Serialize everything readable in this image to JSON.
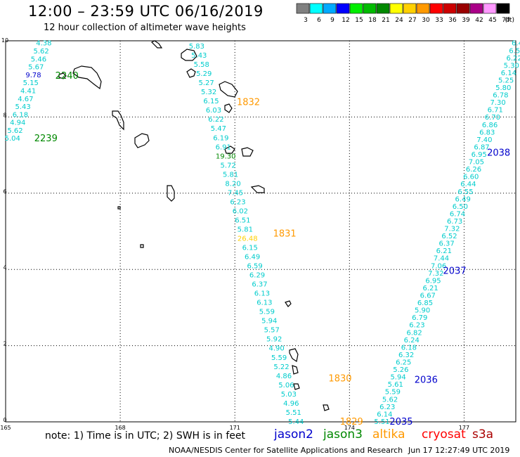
{
  "header": {
    "title": "12:00 – 23:59 UTC 06/16/2019",
    "subtitle": "12 hour collection of altimeter wave heights"
  },
  "legend": {
    "unit": "(ft)",
    "bins": [
      {
        "label": "3",
        "color": "#808080"
      },
      {
        "label": "6",
        "color": "#00ffff"
      },
      {
        "label": "9",
        "color": "#00aaff"
      },
      {
        "label": "12",
        "color": "#0000ff"
      },
      {
        "label": "15",
        "color": "#00ee00"
      },
      {
        "label": "18",
        "color": "#00bb00"
      },
      {
        "label": "21",
        "color": "#008800"
      },
      {
        "label": "24",
        "color": "#ffff00"
      },
      {
        "label": "27",
        "color": "#ffd000"
      },
      {
        "label": "30",
        "color": "#ff9900"
      },
      {
        "label": "33",
        "color": "#ff0000"
      },
      {
        "label": "36",
        "color": "#cc0000"
      },
      {
        "label": "39",
        "color": "#990000"
      },
      {
        "label": "42",
        "color": "#aa0088"
      },
      {
        "label": "45",
        "color": "#ff99ff"
      },
      {
        "label": "70",
        "color": "#000000"
      }
    ]
  },
  "map": {
    "lon_ticks": [
      "165",
      "168",
      "171",
      "174",
      "177"
    ],
    "lat_ticks": [
      "0",
      "2",
      "4",
      "6",
      "8",
      "10"
    ],
    "lon_range": [
      165,
      178.5
    ],
    "lat_range": [
      0,
      10
    ]
  },
  "tracks": [
    {
      "name": "track-west",
      "start": [
        166.0,
        9.95
      ],
      "end": [
        165.18,
        7.45
      ],
      "values": [
        "4.38",
        "5.62",
        "5.46",
        "5.67",
        "9.78",
        "5.15",
        "4.41",
        "4.67",
        "5.43",
        "6.18",
        "4.94",
        "5.62",
        "5.04"
      ],
      "colors": {
        "9.78": "#0000cc"
      },
      "time_labels": [
        {
          "text": "2240",
          "lon": 166.3,
          "lat": 9.1,
          "color": "#008800"
        },
        {
          "text": "2239",
          "lon": 165.75,
          "lat": 7.45,
          "color": "#008800"
        }
      ]
    },
    {
      "name": "track-center",
      "start": [
        170.0,
        9.87
      ],
      "end": [
        172.6,
        0.02
      ],
      "values": [
        "5.83",
        "5.43",
        "5.58",
        "5.29",
        "5.27",
        "5.32",
        "6.15",
        "6.03",
        "6.22",
        "5.47",
        "6.19",
        "6.91",
        "19.30",
        "5.72",
        "5.81",
        "8.20",
        "7.45",
        "6.23",
        "6.02",
        "6.51",
        "5.81",
        "26.48",
        "6.15",
        "6.49",
        "6.59",
        "6.29",
        "6.37",
        "6.13",
        "6.13",
        "5.59",
        "5.94",
        "5.57",
        "5.92",
        "4.90",
        "5.59",
        "5.22",
        "4.86",
        "5.06",
        "5.03",
        "4.96",
        "5.51",
        "5.44"
      ],
      "colors": {
        "19.30": "#008800",
        "26.48": "#ffd000"
      },
      "time_labels": [
        {
          "text": "1832",
          "lon": 171.05,
          "lat": 8.4,
          "color": "#ff9900"
        },
        {
          "text": "1831",
          "lon": 172.0,
          "lat": 4.95,
          "color": "#ff9900"
        },
        {
          "text": "1830",
          "lon": 173.45,
          "lat": 1.15,
          "color": "#ff9900"
        },
        {
          "text": "1829",
          "lon": 173.75,
          "lat": 0.02,
          "color": "#ff9900"
        }
      ]
    },
    {
      "name": "track-east",
      "start": [
        178.45,
        9.95
      ],
      "end": [
        174.85,
        0.02
      ],
      "values": [
        "6.44",
        "6.51",
        "6.22",
        "5.30",
        "6.14",
        "5.25",
        "5.80",
        "6.78",
        "7.30",
        "6.71",
        "6.70",
        "6.86",
        "6.83",
        "7.40",
        "6.87",
        "6.95",
        "7.05",
        "6.26",
        "6.60",
        "6.44",
        "6.55",
        "6.49",
        "6.50",
        "6.74",
        "6.73",
        "7.32",
        "6.52",
        "6.37",
        "6.21",
        "7.44",
        "7.06",
        "7.32",
        "6.95",
        "6.21",
        "6.67",
        "6.85",
        "5.90",
        "6.79",
        "6.23",
        "6.82",
        "6.24",
        "6.18",
        "6.32",
        "6.25",
        "5.26",
        "5.94",
        "5.61",
        "5.59",
        "5.62",
        "6.23",
        "6.14",
        "5.51"
      ],
      "colors": {},
      "time_labels": [
        {
          "text": "2038",
          "lon": 177.6,
          "lat": 7.08,
          "color": "#0000cc"
        },
        {
          "text": "2037",
          "lon": 176.45,
          "lat": 3.98,
          "color": "#0000cc"
        },
        {
          "text": "2036",
          "lon": 175.7,
          "lat": 1.12,
          "color": "#0000cc"
        },
        {
          "text": "2035",
          "lon": 175.05,
          "lat": 0.02,
          "color": "#0000cc"
        }
      ]
    }
  ],
  "footer": {
    "note": "note:  1) Time is in UTC;  2) SWH is in feet",
    "satellites": [
      {
        "name": "jason2",
        "color": "#0000cc"
      },
      {
        "name": "jason3",
        "color": "#008800"
      },
      {
        "name": "altika",
        "color": "#ff9900"
      },
      {
        "name": "cryosat",
        "color": "#ff0000"
      },
      {
        "name": "s3a",
        "color": "#aa0000"
      }
    ],
    "credit": "NOAA/NESDIS Center for Satellite Applications and Research",
    "timestamp": "Jun 17 12:27:49 UTC 2019"
  },
  "colors": {
    "default_value": "#00cccc",
    "grid": "#000000"
  }
}
